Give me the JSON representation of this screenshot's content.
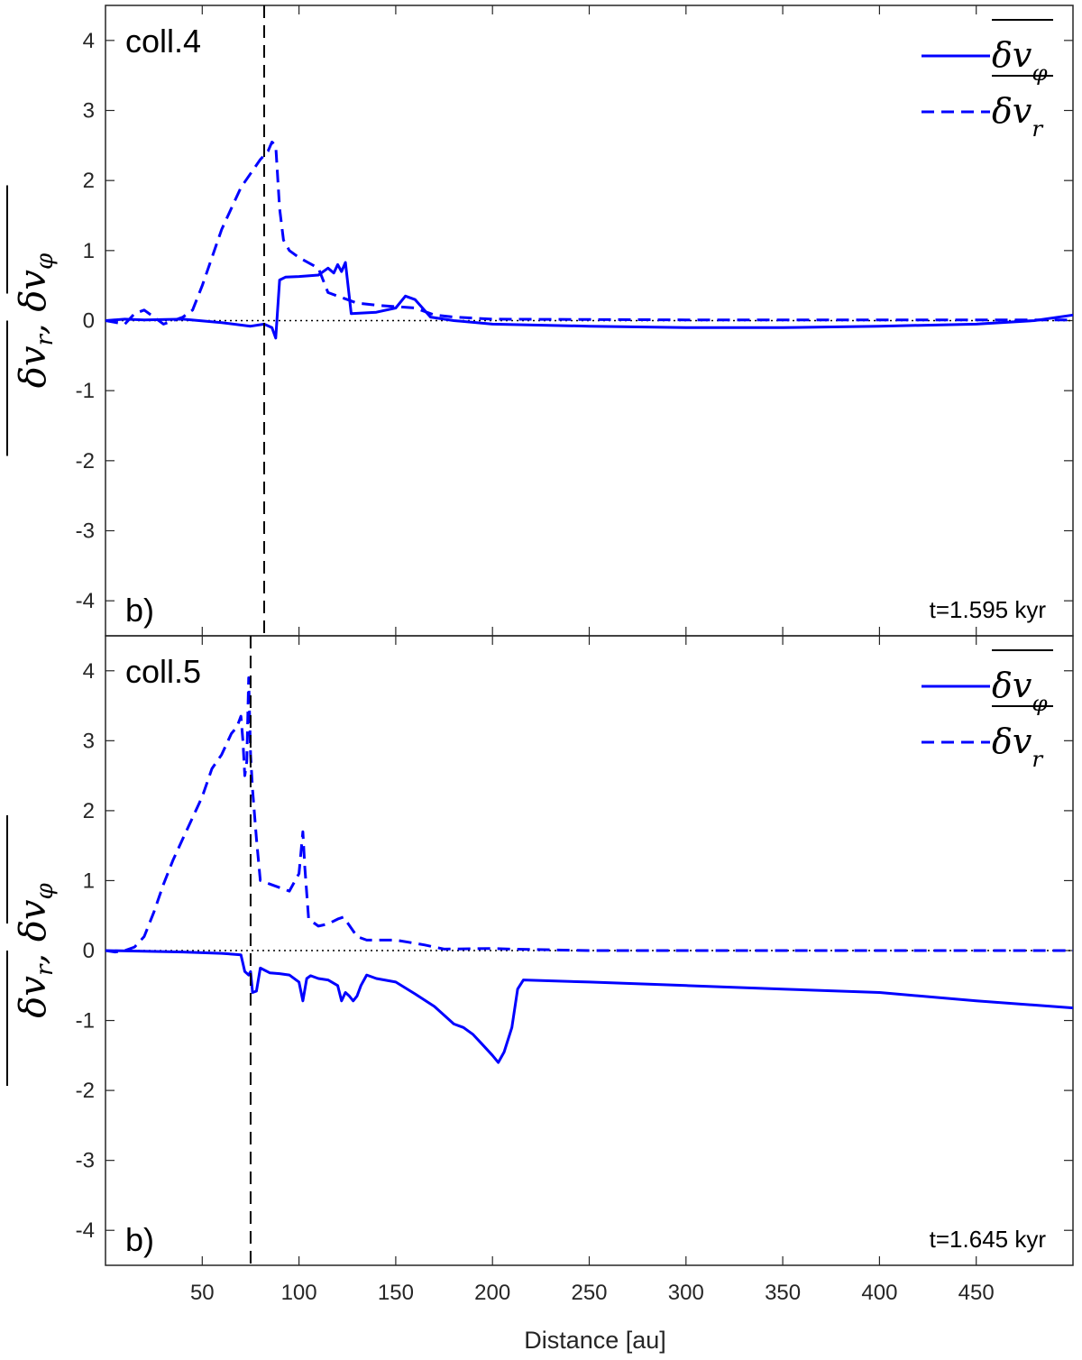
{
  "colors": {
    "series": "#0000ff",
    "axis": "#262626",
    "zero_line": "#000000",
    "marker_line": "#000000"
  },
  "chart_data": [
    {
      "type": "line",
      "panel_title": "coll.4",
      "panel_letter": "b)",
      "time_label": "t=1.595 kyr",
      "xlabel": "",
      "ylabel": "δv_r, δv_φ",
      "xlim": [
        0,
        500
      ],
      "ylim": [
        -4.5,
        4.5
      ],
      "xticks": [
        50,
        100,
        150,
        200,
        250,
        300,
        350,
        400,
        450
      ],
      "yticks": [
        4,
        3,
        2,
        1,
        0,
        -1,
        -2,
        -3,
        -4
      ],
      "xtick_labels_shown": false,
      "vline_x": 82,
      "zero_line": true,
      "legend": {
        "position": "top-right",
        "entries": [
          {
            "label": "δv_φ",
            "style": "solid"
          },
          {
            "label": "δv_r",
            "style": "dashed"
          }
        ]
      },
      "series": [
        {
          "name": "δv_φ",
          "style": "solid",
          "x": [
            0,
            10,
            20,
            40,
            60,
            75,
            82,
            86,
            88,
            90,
            93,
            100,
            110,
            115,
            118,
            120,
            122,
            124,
            127,
            140,
            150,
            155,
            160,
            168,
            180,
            200,
            250,
            300,
            350,
            400,
            450,
            480,
            500
          ],
          "y": [
            0,
            0.02,
            0.01,
            0.02,
            -0.03,
            -0.08,
            -0.05,
            -0.1,
            -0.25,
            0.58,
            0.62,
            0.63,
            0.65,
            0.75,
            0.68,
            0.8,
            0.7,
            0.83,
            0.1,
            0.12,
            0.18,
            0.35,
            0.3,
            0.05,
            0.0,
            -0.05,
            -0.08,
            -0.1,
            -0.1,
            -0.08,
            -0.05,
            0.0,
            0.08
          ]
        },
        {
          "name": "δv_r",
          "style": "dashed",
          "x": [
            0,
            10,
            15,
            20,
            25,
            30,
            35,
            40,
            45,
            50,
            60,
            70,
            80,
            84,
            86,
            88,
            90,
            92,
            95,
            100,
            110,
            115,
            120,
            125,
            130,
            140,
            150,
            160,
            170,
            180,
            200,
            300,
            400,
            500
          ],
          "y": [
            0,
            -0.05,
            0.1,
            0.15,
            0.05,
            -0.05,
            0.0,
            0.05,
            0.15,
            0.5,
            1.3,
            1.9,
            2.3,
            2.42,
            2.55,
            2.5,
            1.6,
            1.15,
            1.0,
            0.9,
            0.75,
            0.4,
            0.35,
            0.3,
            0.25,
            0.22,
            0.2,
            0.18,
            0.08,
            0.05,
            0.02,
            0.01,
            0.01,
            0.01
          ]
        }
      ]
    },
    {
      "type": "line",
      "panel_title": "coll.5",
      "panel_letter": "b)",
      "time_label": "t=1.645 kyr",
      "xlabel": "Distance [au]",
      "ylabel": "δv_r, δv_φ",
      "xlim": [
        0,
        500
      ],
      "ylim": [
        -4.5,
        4.5
      ],
      "xticks": [
        50,
        100,
        150,
        200,
        250,
        300,
        350,
        400,
        450
      ],
      "yticks": [
        4,
        3,
        2,
        1,
        0,
        -1,
        -2,
        -3,
        -4
      ],
      "xtick_labels_shown": true,
      "vline_x": 75,
      "zero_line": true,
      "legend": {
        "position": "top-right",
        "entries": [
          {
            "label": "δv_φ",
            "style": "solid"
          },
          {
            "label": "δv_r",
            "style": "dashed"
          }
        ]
      },
      "series": [
        {
          "name": "δv_φ",
          "style": "solid",
          "x": [
            0,
            20,
            40,
            60,
            70,
            72,
            74,
            75,
            76,
            78,
            80,
            85,
            90,
            95,
            100,
            102,
            104,
            106,
            110,
            115,
            120,
            122,
            124,
            126,
            128,
            130,
            132,
            135,
            140,
            150,
            160,
            170,
            180,
            185,
            190,
            195,
            200,
            203,
            206,
            210,
            213,
            216,
            250,
            300,
            350,
            400,
            450,
            500
          ],
          "y": [
            0,
            -0.01,
            -0.02,
            -0.04,
            -0.06,
            -0.3,
            -0.35,
            -0.3,
            -0.6,
            -0.58,
            -0.25,
            -0.32,
            -0.33,
            -0.35,
            -0.45,
            -0.72,
            -0.4,
            -0.36,
            -0.4,
            -0.42,
            -0.5,
            -0.72,
            -0.6,
            -0.65,
            -0.72,
            -0.65,
            -0.5,
            -0.35,
            -0.4,
            -0.45,
            -0.62,
            -0.8,
            -1.05,
            -1.1,
            -1.2,
            -1.35,
            -1.5,
            -1.6,
            -1.45,
            -1.1,
            -0.55,
            -0.42,
            -0.45,
            -0.5,
            -0.55,
            -0.6,
            -0.72,
            -0.82
          ]
        },
        {
          "name": "δv_r",
          "style": "dashed",
          "x": [
            0,
            5,
            10,
            15,
            20,
            25,
            30,
            35,
            40,
            45,
            50,
            55,
            60,
            65,
            68,
            70,
            71,
            72,
            73,
            74,
            75,
            76,
            78,
            80,
            85,
            90,
            95,
            100,
            102,
            103,
            105,
            110,
            115,
            120,
            123,
            125,
            130,
            135,
            150,
            165,
            175,
            200,
            210,
            250,
            300,
            400,
            500
          ],
          "y": [
            0,
            -0.02,
            0.0,
            0.05,
            0.2,
            0.55,
            0.95,
            1.3,
            1.6,
            1.9,
            2.2,
            2.6,
            2.8,
            3.1,
            3.2,
            3.35,
            3.0,
            2.5,
            2.7,
            3.9,
            2.8,
            2.3,
            1.6,
            1.0,
            0.95,
            0.9,
            0.85,
            1.1,
            1.7,
            1.2,
            0.45,
            0.35,
            0.38,
            0.45,
            0.48,
            0.4,
            0.2,
            0.15,
            0.15,
            0.08,
            0.02,
            0.03,
            0.02,
            0.0,
            0.0,
            0.0,
            0.0
          ]
        }
      ]
    }
  ]
}
